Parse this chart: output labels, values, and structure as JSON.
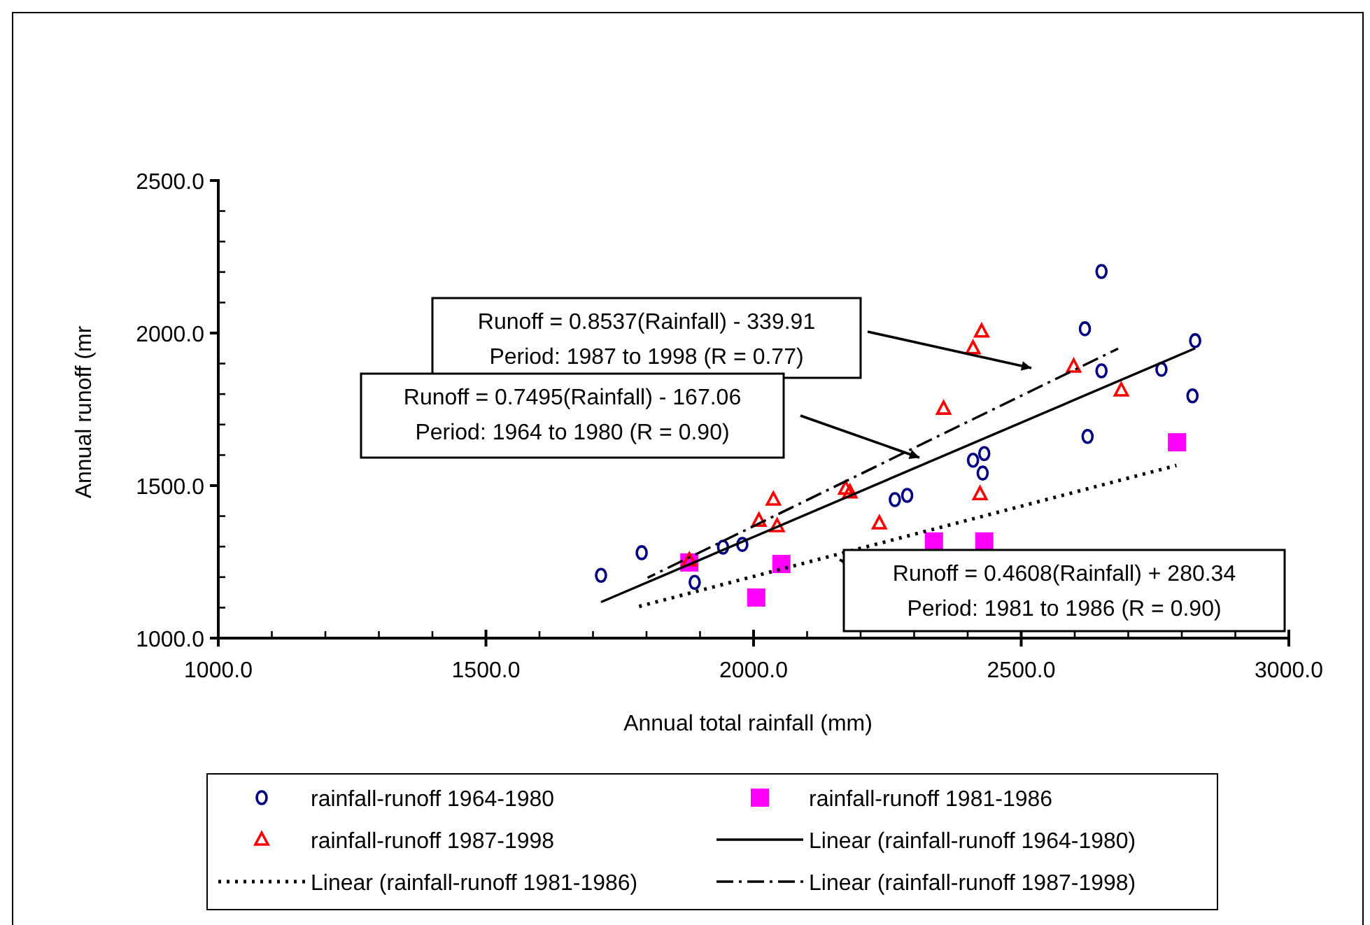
{
  "chart_data": {
    "type": "scatter",
    "xlabel": "Annual total rainfall (mm)",
    "ylabel": "Annual runoff (mr",
    "xlim": [
      1000,
      3000
    ],
    "ylim": [
      1000,
      2500
    ],
    "xticks": [
      {
        "value": 1000,
        "label": "1000.0"
      },
      {
        "value": 1100,
        "label": null
      },
      {
        "value": 1200,
        "label": null
      },
      {
        "value": 1300,
        "label": null
      },
      {
        "value": 1400,
        "label": null
      },
      {
        "value": 1500,
        "label": "1500.0"
      },
      {
        "value": 1600,
        "label": null
      },
      {
        "value": 1700,
        "label": null
      },
      {
        "value": 1800,
        "label": null
      },
      {
        "value": 1900,
        "label": null
      },
      {
        "value": 2000,
        "label": "2000.0"
      },
      {
        "value": 2100,
        "label": null
      },
      {
        "value": 2200,
        "label": null
      },
      {
        "value": 2300,
        "label": null
      },
      {
        "value": 2400,
        "label": null
      },
      {
        "value": 2500,
        "label": "2500.0"
      },
      {
        "value": 2600,
        "label": null
      },
      {
        "value": 2700,
        "label": null
      },
      {
        "value": 2800,
        "label": null
      },
      {
        "value": 2900,
        "label": null
      },
      {
        "value": 3000,
        "label": "3000.0"
      }
    ],
    "yticks": [
      {
        "value": 1000,
        "label": "1000.0"
      },
      {
        "value": 1100,
        "label": null
      },
      {
        "value": 1200,
        "label": null
      },
      {
        "value": 1300,
        "label": null
      },
      {
        "value": 1400,
        "label": null
      },
      {
        "value": 1500,
        "label": "1500.0"
      },
      {
        "value": 1600,
        "label": null
      },
      {
        "value": 1700,
        "label": null
      },
      {
        "value": 1800,
        "label": null
      },
      {
        "value": 1900,
        "label": null
      },
      {
        "value": 2000,
        "label": "2000.0"
      },
      {
        "value": 2100,
        "label": null
      },
      {
        "value": 2200,
        "label": null
      },
      {
        "value": 2300,
        "label": null
      },
      {
        "value": 2400,
        "label": null
      },
      {
        "value": 2500,
        "label": "2500.0"
      }
    ],
    "grid": false,
    "legend": "bottom",
    "series": [
      {
        "name": "rainfall-runoff 1964-1980",
        "marker": "circle",
        "color": "#000080",
        "x": [
          1715,
          1791,
          1890,
          1943,
          1979,
          2264,
          2287,
          2410,
          2431,
          2428,
          2624,
          2650,
          2619,
          2650,
          2762,
          2820,
          2825
        ],
        "values": [
          1206,
          1280,
          1183,
          1298,
          1307,
          1454,
          1468,
          1583,
          1605,
          1541,
          1661,
          1876,
          2014,
          2202,
          1881,
          1794,
          1975
        ]
      },
      {
        "name": "rainfall-runoff 1981-1986",
        "marker": "square",
        "color": "#ff00ff",
        "x": [
          1880,
          2005,
          2052,
          2337,
          2431,
          2791
        ],
        "values": [
          1248,
          1133,
          1243,
          1317,
          1317,
          1642
        ]
      },
      {
        "name": "rainfall-runoff 1987-1998",
        "marker": "triangle",
        "color": "#ff0000",
        "x": [
          1880,
          2010,
          2037,
          2044,
          2172,
          2180,
          2235,
          2355,
          2410,
          2423,
          2426,
          2598,
          2687
        ],
        "values": [
          1255,
          1385,
          1454,
          1367,
          1490,
          1478,
          1376,
          1752,
          1950,
          1472,
          2005,
          1890,
          1812
        ]
      },
      {
        "name": "Linear (rainfall-runoff 1964-1980)",
        "type": "line",
        "line_style": "solid",
        "marker": "none",
        "color": "#000000",
        "x": [
          1715,
          2825
        ],
        "values": [
          1118,
          1950
        ]
      },
      {
        "name": "Linear (rainfall-runoff 1981-1986)",
        "type": "line",
        "line_style": "dotted",
        "marker": "none",
        "color": "#000000",
        "x": [
          1780,
          2790
        ],
        "values": [
          1101,
          1566
        ]
      },
      {
        "name": "Linear (rainfall-runoff 1987-1998)",
        "type": "line",
        "line_style": "dashed",
        "marker": "none",
        "color": "#000000",
        "x": [
          1802,
          2681
        ],
        "values": [
          1198,
          1949
        ]
      }
    ],
    "annotations": [
      "Runoff = 0.8537(Rainfall) - 339.91\nPeriod: 1987 to 1998 (R = 0.77)",
      "Runoff = 0.7495(Rainfall) - 167.06\nPeriod: 1964 to 1980 (R = 0.90)",
      "Runoff = 0.4608(Rainfall) + 280.34\nPeriod: 1981 to 1986 (R = 0.90)"
    ]
  }
}
